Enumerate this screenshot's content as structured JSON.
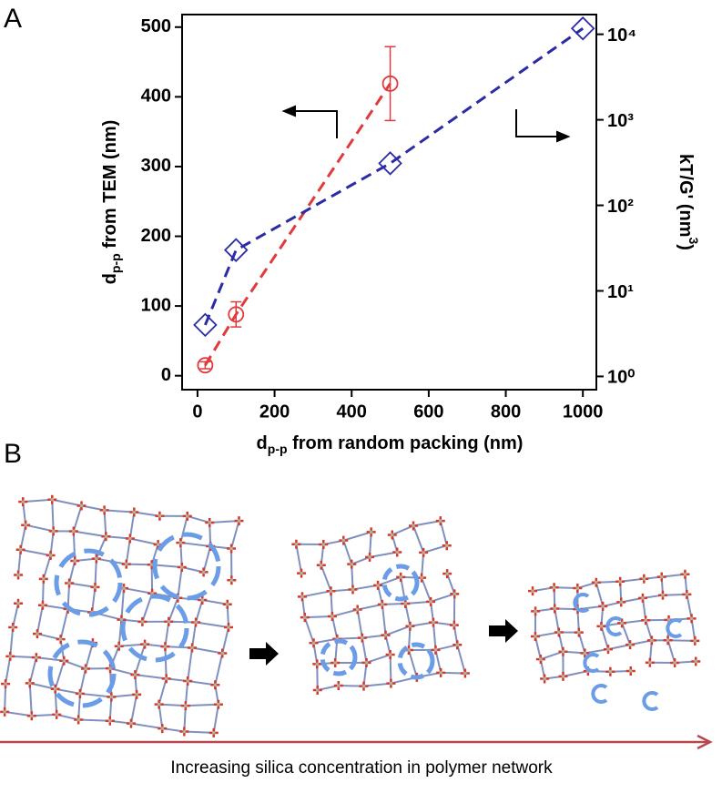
{
  "chart_data": {
    "type": "line",
    "panel_label": "A",
    "x": [
      20,
      100,
      500,
      1000
    ],
    "xlim": [
      -40,
      1035
    ],
    "xticks": [
      0,
      200,
      400,
      600,
      800,
      1000
    ],
    "ylim": [
      -20,
      518
    ],
    "yticks": [
      0,
      100,
      200,
      300,
      400,
      500
    ],
    "y2lim": [
      0.7,
      17000
    ],
    "y2scale": "log",
    "y2ticks": [
      {
        "value": 1,
        "label": "10⁰"
      },
      {
        "value": 10,
        "label": "10¹"
      },
      {
        "value": 100,
        "label": "10²"
      },
      {
        "value": 1000,
        "label": "10³"
      },
      {
        "value": 10000,
        "label": "10⁴"
      }
    ],
    "x_label": {
      "main": "d",
      "sub": "p-p",
      "rest": " from random packing (nm)"
    },
    "y_label": {
      "main": "d",
      "sub": "p-p",
      "rest": " from TEM (nm)"
    },
    "y2_label": {
      "main": "kT/G' (nm",
      "sup": "3",
      "rest": ")"
    },
    "series": [
      {
        "color": "#e03a3c",
        "marker": "circle",
        "values": [
          15,
          88,
          419,
          null
        ],
        "errors": [
          5,
          18,
          53,
          null
        ]
      },
      {
        "color": "#2b2ba6",
        "marker": "diamond",
        "axis": "y2",
        "values": [
          4,
          30,
          310,
          11700
        ]
      }
    ]
  },
  "diagram": {
    "panel_label": "B",
    "caption": "Increasing silica concentration in polymer network"
  }
}
